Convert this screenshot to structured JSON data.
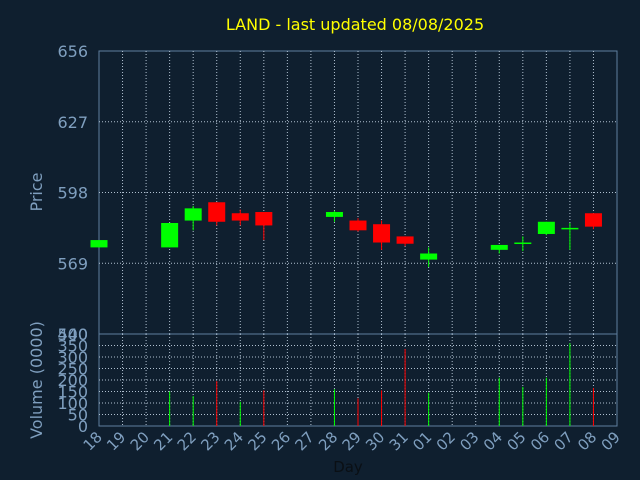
{
  "chart_data": [
    {
      "type": "candlestick",
      "title": "LAND - last updated 08/08/2025",
      "ylabel": "Price",
      "ylim": [
        540,
        656
      ],
      "yticks": [
        "656",
        "627",
        "598",
        "569",
        "540"
      ],
      "ytick_values": [
        656,
        627,
        598,
        569,
        540
      ],
      "grid": true,
      "up_color": "#00ff00",
      "down_color": "#ff0000",
      "categories": [
        "18",
        "19",
        "20",
        "21",
        "22",
        "23",
        "24",
        "25",
        "26",
        "27",
        "28",
        "29",
        "30",
        "31",
        "01",
        "02",
        "03",
        "04",
        "05",
        "06",
        "07",
        "08",
        "09"
      ],
      "candles": [
        {
          "day": "18",
          "open": 575.5,
          "high": 578.5,
          "low": 575.5,
          "close": 578.5
        },
        {
          "day": "21",
          "open": 575.5,
          "high": 585.5,
          "low": 575.5,
          "close": 585.5
        },
        {
          "day": "22",
          "open": 586.5,
          "high": 592.5,
          "low": 582.5,
          "close": 591.5
        },
        {
          "day": "23",
          "open": 594.0,
          "high": 594.0,
          "low": 584.5,
          "close": 586.0
        },
        {
          "day": "24",
          "open": 589.5,
          "high": 591.0,
          "low": 584.5,
          "close": 586.5
        },
        {
          "day": "25",
          "open": 590.0,
          "high": 590.0,
          "low": 578.5,
          "close": 584.5
        },
        {
          "day": "28",
          "open": 588.0,
          "high": 590.5,
          "low": 586.0,
          "close": 590.0
        },
        {
          "day": "29",
          "open": 586.5,
          "high": 587.5,
          "low": 582.0,
          "close": 582.5
        },
        {
          "day": "30",
          "open": 585.0,
          "high": 586.5,
          "low": 574.5,
          "close": 577.5
        },
        {
          "day": "31",
          "open": 580.0,
          "high": 580.0,
          "low": 576.0,
          "close": 577.0
        },
        {
          "day": "01",
          "open": 570.5,
          "high": 575.5,
          "low": 567.5,
          "close": 573.0
        },
        {
          "day": "04",
          "open": 574.5,
          "high": 576.5,
          "low": 573.0,
          "close": 576.5
        },
        {
          "day": "05",
          "open": 577.0,
          "high": 580.0,
          "low": 574.0,
          "close": 577.5
        },
        {
          "day": "06",
          "open": 581.0,
          "high": 586.0,
          "low": 580.5,
          "close": 586.0
        },
        {
          "day": "07",
          "open": 583.0,
          "high": 585.5,
          "low": 574.5,
          "close": 583.5
        },
        {
          "day": "08",
          "open": 589.5,
          "high": 589.5,
          "low": 583.0,
          "close": 584.0
        }
      ]
    },
    {
      "type": "bar",
      "ylabel": "Volume (0000)",
      "xlabel": "Day",
      "ylim": [
        0,
        400
      ],
      "yticks": [
        "400",
        "350",
        "300",
        "250",
        "200",
        "150",
        "100",
        "50",
        "0"
      ],
      "ytick_values": [
        400,
        350,
        300,
        250,
        200,
        150,
        100,
        50,
        0
      ],
      "categories": [
        "18",
        "19",
        "20",
        "21",
        "22",
        "23",
        "24",
        "25",
        "26",
        "27",
        "28",
        "29",
        "30",
        "31",
        "01",
        "02",
        "03",
        "04",
        "05",
        "06",
        "07",
        "08",
        "09"
      ],
      "volumes": [
        {
          "day": "21",
          "value": 150,
          "color": "#00ff00"
        },
        {
          "day": "22",
          "value": 130,
          "color": "#00ff00"
        },
        {
          "day": "23",
          "value": 195,
          "color": "#ff0000"
        },
        {
          "day": "24",
          "value": 105,
          "color": "#00ff00"
        },
        {
          "day": "25",
          "value": 155,
          "color": "#ff0000"
        },
        {
          "day": "28",
          "value": 160,
          "color": "#00ff00"
        },
        {
          "day": "29",
          "value": 120,
          "color": "#ff0000"
        },
        {
          "day": "30",
          "value": 155,
          "color": "#ff0000"
        },
        {
          "day": "31",
          "value": 335,
          "color": "#ff0000"
        },
        {
          "day": "01",
          "value": 145,
          "color": "#00ff00"
        },
        {
          "day": "04",
          "value": 210,
          "color": "#00ff00"
        },
        {
          "day": "05",
          "value": 170,
          "color": "#00ff00"
        },
        {
          "day": "06",
          "value": 210,
          "color": "#00ff00"
        },
        {
          "day": "07",
          "value": 360,
          "color": "#00ff00"
        },
        {
          "day": "08",
          "value": 165,
          "color": "#ff0000"
        }
      ]
    }
  ],
  "colors": {
    "background": "#0f1f2f",
    "title": "#ffff00",
    "axis_text": "#7f9fbf",
    "plot_border": "#5f7f9f",
    "grid": "#b0c0d0"
  }
}
